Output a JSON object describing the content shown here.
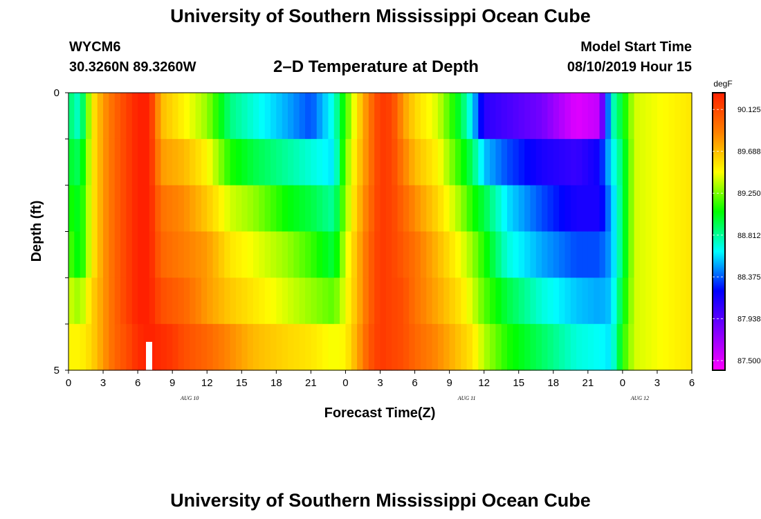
{
  "header": {
    "title": "University of Southern Mississippi Ocean Cube",
    "station": "WYCM6",
    "coords": "30.3260N 89.3260W",
    "subtitle": "2–D Temperature at Depth",
    "model_start_label": "Model Start Time",
    "model_start_value": "08/10/2019 Hour 15"
  },
  "footer": {
    "title": "University of Southern Mississippi Ocean Cube"
  },
  "chart_data": {
    "type": "heatmap",
    "title": "2–D Temperature at Depth",
    "xlabel": "Forecast Time(Z)",
    "ylabel": "Depth (ft)",
    "units": "degF",
    "x_tick_labels": [
      "0",
      "3",
      "6",
      "9",
      "12",
      "15",
      "18",
      "21",
      "0",
      "3",
      "6",
      "9",
      "12",
      "15",
      "18",
      "21",
      "0",
      "3",
      "6"
    ],
    "date_labels": [
      {
        "after_tick": 3,
        "text": "AUG 10"
      },
      {
        "after_tick": 11,
        "text": "AUG 11"
      },
      {
        "after_tick": 16,
        "text": "AUG 12"
      }
    ],
    "y_tick_labels": [
      "0",
      "5"
    ],
    "ylim": [
      0,
      5
    ],
    "x_hours_range": [
      0,
      54
    ],
    "colorbar": {
      "vmin": 87.4,
      "vmax": 90.3,
      "tick_values": [
        90.125,
        89.688,
        89.25,
        88.812,
        88.375,
        87.938,
        87.5
      ],
      "tick_labels": [
        "90.125",
        "89.688",
        "89.250",
        "88.812",
        "88.375",
        "87.938",
        "87.500"
      ],
      "label": "degF",
      "colors": [
        "#ff00ff",
        "#8000ff",
        "#0000ff",
        "#00ffff",
        "#00ff00",
        "#ffff00",
        "#ff8000",
        "#ff2000"
      ]
    },
    "depths": [
      0,
      1,
      2,
      3,
      4,
      5
    ],
    "keyframes": [
      {
        "hour": 0,
        "values": [
          88.9,
          89.0,
          89.1,
          89.2,
          89.4,
          89.5
        ]
      },
      {
        "hour": 1,
        "values": [
          88.7,
          88.9,
          89.0,
          89.0,
          89.3,
          89.5
        ]
      },
      {
        "hour": 2,
        "values": [
          89.5,
          89.5,
          89.5,
          89.5,
          89.6,
          89.6
        ]
      },
      {
        "hour": 3,
        "values": [
          89.8,
          89.8,
          89.8,
          89.8,
          89.8,
          89.8
        ]
      },
      {
        "hour": 4,
        "values": [
          90.0,
          90.0,
          90.0,
          90.0,
          90.0,
          90.0
        ]
      },
      {
        "hour": 5,
        "values": [
          90.15,
          90.15,
          90.15,
          90.15,
          90.15,
          90.1
        ]
      },
      {
        "hour": 6,
        "values": [
          90.3,
          90.3,
          90.3,
          90.3,
          90.3,
          90.25
        ]
      },
      {
        "hour": 7,
        "values": [
          90.3,
          90.3,
          90.3,
          90.3,
          90.3,
          90.3
        ]
      },
      {
        "hour": 8,
        "values": [
          89.7,
          89.8,
          89.95,
          90.0,
          90.1,
          90.25
        ]
      },
      {
        "hour": 9,
        "values": [
          89.6,
          89.75,
          89.9,
          89.95,
          90.05,
          90.2
        ]
      },
      {
        "hour": 10,
        "values": [
          89.5,
          89.7,
          89.85,
          89.9,
          90.0,
          90.1
        ]
      },
      {
        "hour": 12,
        "values": [
          89.3,
          89.5,
          89.65,
          89.8,
          89.8,
          90.0
        ]
      },
      {
        "hour": 14,
        "values": [
          88.85,
          89.1,
          89.4,
          89.55,
          89.65,
          89.85
        ]
      },
      {
        "hour": 16,
        "values": [
          88.7,
          88.95,
          89.3,
          89.45,
          89.55,
          89.7
        ]
      },
      {
        "hour": 19,
        "values": [
          88.5,
          88.8,
          89.05,
          89.3,
          89.4,
          89.6
        ]
      },
      {
        "hour": 21,
        "values": [
          88.35,
          88.7,
          88.95,
          89.15,
          89.3,
          89.55
        ]
      },
      {
        "hour": 23,
        "values": [
          88.7,
          88.6,
          88.8,
          88.95,
          89.2,
          89.45
        ]
      },
      {
        "hour": 24,
        "values": [
          89.15,
          89.25,
          89.3,
          89.4,
          89.45,
          89.5
        ]
      },
      {
        "hour": 25,
        "values": [
          89.55,
          89.6,
          89.65,
          89.7,
          89.7,
          89.75
        ]
      },
      {
        "hour": 26,
        "values": [
          89.9,
          89.9,
          89.95,
          90.0,
          90.0,
          90.05
        ]
      },
      {
        "hour": 27,
        "values": [
          90.2,
          90.2,
          90.2,
          90.2,
          90.2,
          90.2
        ]
      },
      {
        "hour": 28,
        "values": [
          90.15,
          90.15,
          90.15,
          90.15,
          90.15,
          90.15
        ]
      },
      {
        "hour": 29,
        "values": [
          89.8,
          89.9,
          90.0,
          90.05,
          90.1,
          90.1
        ]
      },
      {
        "hour": 30,
        "values": [
          89.6,
          89.7,
          89.85,
          89.95,
          89.95,
          90.0
        ]
      },
      {
        "hour": 32,
        "values": [
          89.4,
          89.5,
          89.6,
          89.7,
          89.75,
          89.85
        ]
      },
      {
        "hour": 34,
        "values": [
          88.95,
          89.1,
          89.3,
          89.45,
          89.55,
          89.65
        ]
      },
      {
        "hour": 35,
        "values": [
          88.6,
          88.9,
          89.1,
          89.3,
          89.4,
          89.55
        ]
      },
      {
        "hour": 36,
        "values": [
          88.1,
          88.55,
          88.95,
          89.1,
          89.2,
          89.35
        ]
      },
      {
        "hour": 38,
        "values": [
          88.0,
          88.35,
          88.6,
          88.7,
          88.95,
          89.1
        ]
      },
      {
        "hour": 41,
        "values": [
          87.85,
          88.15,
          88.35,
          88.5,
          88.7,
          88.9
        ]
      },
      {
        "hour": 44,
        "values": [
          87.5,
          88.05,
          88.15,
          88.35,
          88.55,
          88.7
        ]
      },
      {
        "hour": 46,
        "values": [
          87.6,
          88.2,
          88.15,
          88.35,
          88.5,
          88.65
        ]
      },
      {
        "hour": 47,
        "values": [
          88.7,
          88.6,
          88.5,
          88.5,
          88.55,
          88.6
        ]
      },
      {
        "hour": 48,
        "values": [
          89.0,
          88.9,
          88.9,
          88.9,
          89.0,
          89.1
        ]
      },
      {
        "hour": 49,
        "values": [
          89.4,
          89.4,
          89.4,
          89.4,
          89.4,
          89.4
        ]
      },
      {
        "hour": 54,
        "values": [
          89.55,
          89.55,
          89.55,
          89.55,
          89.55,
          89.55
        ]
      }
    ]
  }
}
